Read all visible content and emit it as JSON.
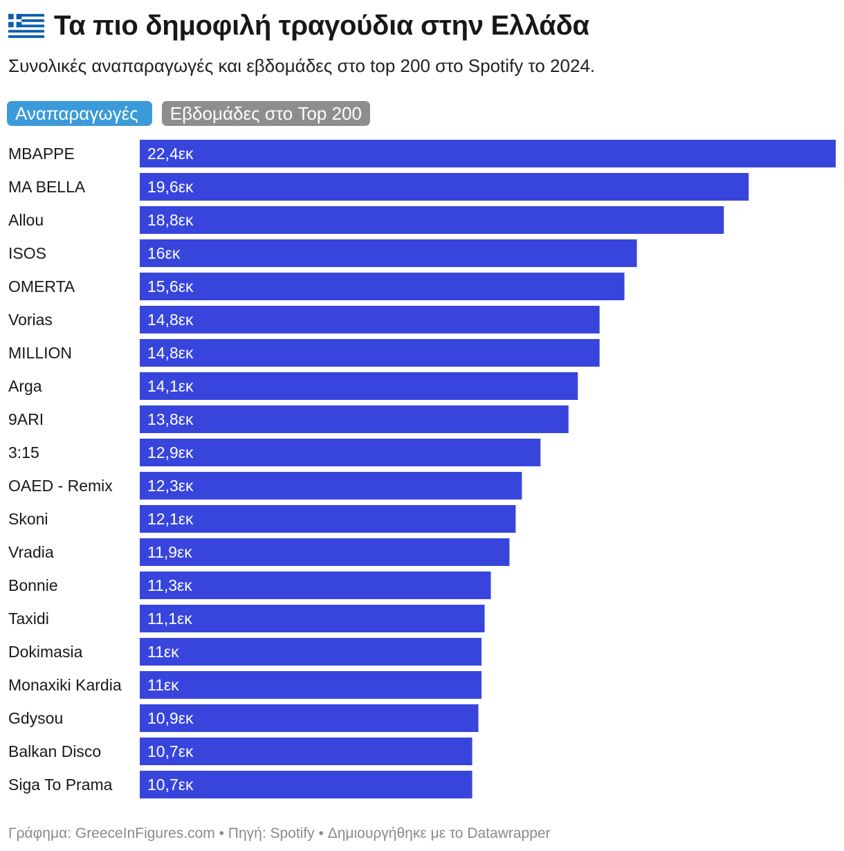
{
  "header": {
    "title": "Τα πιο δημοφιλή τραγούδια στην Ελλάδα",
    "flag_icon": "greek-flag-icon",
    "subtitle": "Συνολικές αναπαραγωγές και εβδομάδες στο top 200 στο Spotify το 2024."
  },
  "toggles": {
    "streams_label": "Αναπαραγωγές",
    "weeks_label": "Εβδομάδες στο Top 200",
    "active": "streams"
  },
  "colors": {
    "bar": "#3745dd",
    "toggle_active": "#3b9ad9",
    "toggle_inactive": "#8e8e8e",
    "label_text": "#181818",
    "value_text": "#ffffff",
    "footer_text": "#8a8a8a"
  },
  "chart_data": {
    "type": "bar",
    "orientation": "horizontal",
    "categories": [
      "MBAPPE",
      "MA BELLA",
      "Allou",
      "ISOS",
      "OMERTA",
      "Vorias",
      "MILLION",
      "Arga",
      "9ARI",
      "3:15",
      "OAED - Remix",
      "Skoni",
      "Vradia",
      "Bonnie",
      "Taxidi",
      "Dokimasia",
      "Monaxiki Kardia",
      "Gdysou",
      "Balkan Disco",
      "Siga To Prama"
    ],
    "values": [
      22.4,
      19.6,
      18.8,
      16.0,
      15.6,
      14.8,
      14.8,
      14.1,
      13.8,
      12.9,
      12.3,
      12.1,
      11.9,
      11.3,
      11.1,
      11.0,
      11.0,
      10.9,
      10.7,
      10.7
    ],
    "value_labels": [
      "22,4εκ",
      "19,6εκ",
      "18,8εκ",
      "16εκ",
      "15,6εκ",
      "14,8εκ",
      "14,8εκ",
      "14,1εκ",
      "13,8εκ",
      "12,9εκ",
      "12,3εκ",
      "12,1εκ",
      "11,9εκ",
      "11,3εκ",
      "11,1εκ",
      "11εκ",
      "11εκ",
      "10,9εκ",
      "10,7εκ",
      "10,7εκ"
    ],
    "xlim": [
      0,
      22.4
    ],
    "grid": false
  },
  "footer": {
    "credit": "Γράφημα: GreeceInFigures.com • Πηγή: Spotify • Δημιουργήθηκε με το Datawrapper"
  }
}
